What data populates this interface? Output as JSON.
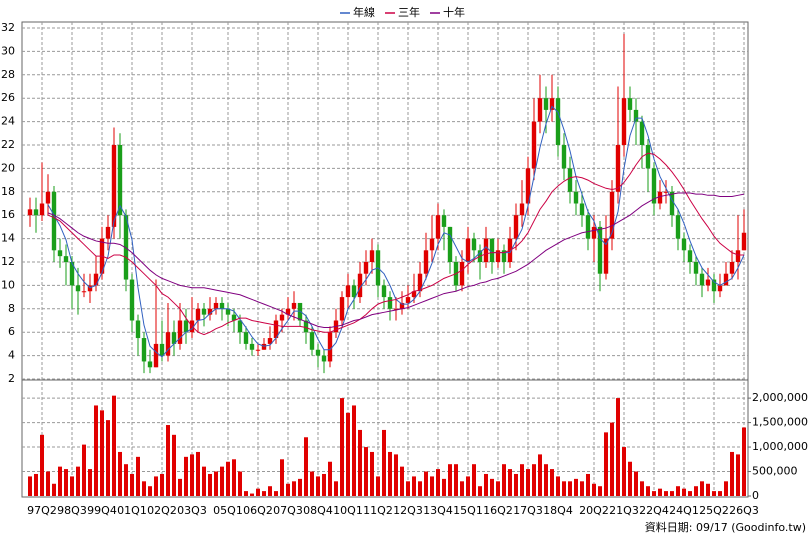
{
  "chart_data": {
    "type": "candlestick",
    "legend_position": "top",
    "grid": true,
    "up_color": "#e00000",
    "down_color": "#1a9e1a",
    "categories": [
      "",
      "",
      "97Q2",
      "",
      "",
      "",
      "",
      "98Q3",
      "",
      "",
      "",
      "",
      "99Q4",
      "",
      "",
      "",
      "",
      "01Q1",
      "",
      "",
      "",
      "",
      "02Q2",
      "",
      "",
      "",
      "",
      "03Q3",
      "",
      "",
      "",
      "",
      "",
      "05Q1",
      "",
      "",
      "",
      "",
      "06Q2",
      "",
      "",
      "",
      "",
      "07Q3",
      "",
      "",
      "",
      "",
      "08Q4",
      "",
      "",
      "",
      "",
      "10Q1",
      "",
      "",
      "",
      "",
      "11Q2",
      "",
      "",
      "",
      "",
      "12Q3",
      "",
      "",
      "",
      "",
      "13Q4",
      "",
      "",
      "",
      "",
      "15Q1",
      "",
      "",
      "",
      "",
      "16Q2",
      "",
      "",
      "",
      "",
      "17Q3",
      "",
      "",
      "",
      "",
      "18Q4",
      "",
      "",
      "",
      "",
      "",
      "20Q2",
      "",
      "",
      "",
      "",
      "21Q3",
      "",
      "",
      "",
      "",
      "22Q4",
      "",
      "",
      "",
      "",
      "24Q1",
      "",
      "",
      "",
      "",
      "25Q2",
      "",
      "",
      "",
      "",
      "26Q3"
    ],
    "open": [
      16,
      16.5,
      16,
      17,
      18,
      13,
      12.5,
      12,
      10,
      9.5,
      9.5,
      10,
      11,
      14,
      15,
      22,
      16,
      10.5,
      7,
      5.5,
      3.5,
      3,
      5,
      4,
      6,
      5,
      7,
      6,
      7,
      8,
      7.5,
      8,
      8.5,
      8,
      7.5,
      7,
      6,
      5,
      4.5,
      4.5,
      5,
      5.5,
      7,
      7.5,
      8,
      8.5,
      7,
      6,
      4.5,
      4,
      3.5,
      6,
      7,
      9,
      10,
      9,
      11,
      12,
      13,
      10,
      9,
      8,
      8,
      8.5,
      9,
      9.5,
      11,
      13,
      14,
      16,
      15,
      12,
      10,
      12,
      14,
      13,
      12,
      14,
      12,
      13,
      12,
      14,
      16,
      17,
      20,
      24,
      26,
      25,
      26,
      22,
      20,
      18,
      17,
      16,
      14,
      15,
      11,
      14,
      18,
      22,
      26,
      25,
      24,
      22,
      20,
      17,
      18,
      18,
      16,
      14,
      13,
      12,
      11,
      10,
      10.5,
      9.5,
      10,
      11,
      12,
      13
    ],
    "high": [
      17.5,
      17.5,
      20.5,
      19.5,
      18.5,
      14,
      13.5,
      12.5,
      11.5,
      11,
      11,
      12.5,
      15,
      16,
      23.5,
      23,
      16.5,
      11,
      7.5,
      6,
      4.5,
      10.5,
      7,
      8.5,
      7,
      8.5,
      8,
      9,
      8.5,
      8.5,
      9,
      9,
      9,
      8.5,
      8,
      7.5,
      6.5,
      5.5,
      5,
      5.5,
      6.5,
      7.5,
      8,
      9,
      9.5,
      8.5,
      7.5,
      6.5,
      5,
      4.5,
      6.5,
      8,
      9.5,
      11,
      10.5,
      12,
      13,
      14,
      13.5,
      10.5,
      9.5,
      9,
      9.5,
      10,
      11,
      12,
      14.5,
      16,
      17,
      16.5,
      15,
      12.5,
      13,
      15,
      14.5,
      13.5,
      15,
      14,
      14,
      13.5,
      15,
      17,
      19,
      21,
      26,
      28,
      27,
      28,
      27,
      23,
      21,
      19,
      18,
      16.5,
      16,
      15.5,
      16,
      19,
      27,
      31.5,
      27,
      26,
      24.5,
      22.5,
      20.5,
      19,
      19,
      18.5,
      16.5,
      14.5,
      13.5,
      12.5,
      11.5,
      11.5,
      11,
      11,
      12,
      13,
      16,
      16.5
    ],
    "low": [
      15,
      14.5,
      15.5,
      16,
      12,
      11.5,
      10,
      8,
      7.5,
      9,
      8.5,
      9.5,
      10.5,
      13,
      14,
      14,
      9.5,
      6,
      4,
      2.5,
      2.5,
      3,
      3.5,
      3.5,
      4,
      4.5,
      5,
      5.5,
      6,
      6.5,
      7,
      7.5,
      7,
      6.5,
      6,
      5,
      4.5,
      4,
      4,
      4.5,
      4.5,
      5,
      6,
      7,
      7,
      6.5,
      5,
      4,
      3,
      2.5,
      3,
      5.5,
      6.5,
      8,
      8,
      8.5,
      10,
      11,
      9,
      8,
      7,
      7,
      7.5,
      8,
      8.5,
      9,
      10.5,
      12,
      13,
      13,
      11,
      9.5,
      9.5,
      11,
      12,
      10.5,
      11.5,
      11,
      11.5,
      11,
      11.5,
      13,
      15,
      16,
      19,
      23,
      23,
      24,
      21,
      19,
      17,
      16,
      15,
      13,
      12,
      9.5,
      10.5,
      13,
      17,
      21,
      24,
      22,
      20,
      18,
      16,
      16.5,
      17,
      15,
      13,
      12,
      11,
      10,
      9,
      9.5,
      8.5,
      9,
      10,
      10.5,
      10.5,
      13
    ],
    "close": [
      16.5,
      16,
      17,
      18,
      13,
      12.5,
      12,
      10,
      9.5,
      9.5,
      10,
      11,
      14,
      15,
      22,
      16,
      10.5,
      7,
      5.5,
      3.5,
      3,
      5,
      4,
      6,
      5,
      7,
      6,
      7,
      8,
      7.5,
      8,
      8.5,
      8,
      7.5,
      7,
      6,
      5,
      4.5,
      4.5,
      5,
      5.5,
      7,
      7.5,
      8,
      8.5,
      7,
      6,
      4.5,
      4,
      3.5,
      6,
      7,
      9,
      10,
      9,
      11,
      12,
      13,
      10,
      9,
      8,
      8,
      8.5,
      9,
      9.5,
      11,
      13,
      14,
      16,
      15,
      12,
      10,
      12,
      14,
      13,
      12,
      14,
      12,
      13,
      12,
      14,
      16,
      17,
      20,
      24,
      26,
      25,
      26,
      22,
      20,
      18,
      17,
      16,
      14,
      15,
      11,
      14,
      18,
      22,
      26,
      25,
      24,
      22,
      20,
      17,
      18,
      18,
      16,
      14,
      13,
      12,
      11,
      10,
      10.5,
      9.5,
      10,
      11,
      12,
      13,
      14.5
    ],
    "ylim": [
      2,
      32
    ],
    "yticks": [
      2,
      4,
      6,
      8,
      10,
      12,
      14,
      16,
      18,
      20,
      22,
      24,
      26,
      28,
      30,
      32
    ],
    "series": [
      {
        "name": "年線",
        "color": "#3060c0",
        "values": [
          null,
          null,
          null,
          16.9,
          16,
          15.1,
          13.9,
          11.9,
          11,
          10.3,
          9.8,
          10,
          11.1,
          12.5,
          15.5,
          16.8,
          15.9,
          13.9,
          9.8,
          6.6,
          4.8,
          4.3,
          3.9,
          4.5,
          5,
          5.5,
          6,
          6.3,
          7,
          7.1,
          7.6,
          8,
          8,
          8,
          7.8,
          7.1,
          6.4,
          5.6,
          5,
          4.8,
          4.9,
          5.5,
          6.3,
          7,
          7.8,
          7.8,
          7.4,
          6.5,
          5.4,
          4.5,
          4.5,
          5.1,
          6.4,
          8,
          8.8,
          9.8,
          10.5,
          11.3,
          11.5,
          11,
          10,
          8.8,
          8.4,
          8.4,
          8.8,
          9.5,
          10.6,
          11.9,
          13.5,
          14.5,
          14.3,
          13.3,
          12.3,
          12,
          12.3,
          12.8,
          13.3,
          12.8,
          12.8,
          12.8,
          12.8,
          13.8,
          14.8,
          16.8,
          19.3,
          21.8,
          23.8,
          25.3,
          24.8,
          23.3,
          21.5,
          19.3,
          17.8,
          16.3,
          15.5,
          14,
          13.5,
          14.5,
          16.3,
          20,
          22.8,
          24.3,
          24.3,
          22.8,
          20.8,
          19.3,
          18.3,
          17.3,
          16.5,
          15.3,
          13.8,
          12.5,
          11.5,
          10.9,
          10.3,
          10,
          10.3,
          10.6,
          11.5,
          12.6
        ]
      },
      {
        "name": "三年",
        "color": "#cc0044",
        "values": [
          null,
          null,
          null,
          16,
          15.8,
          15.5,
          15,
          14.5,
          14,
          13.5,
          13,
          12.5,
          12.5,
          12.3,
          12.6,
          12.6,
          12.4,
          12,
          11.5,
          11,
          10.5,
          10,
          9.3,
          9,
          8.5,
          8,
          7.2,
          6.5,
          6,
          5.8,
          6,
          6.3,
          6.5,
          6.8,
          7,
          7.2,
          7.2,
          7,
          6.9,
          6.8,
          6.7,
          6.6,
          6.5,
          6.5,
          6.5,
          6.5,
          6.4,
          6.2,
          6.1,
          6,
          6,
          6.2,
          6.4,
          6.6,
          6.8,
          7.1,
          7.5,
          8,
          8.4,
          8.6,
          8.7,
          8.8,
          9,
          9.2,
          9.5,
          9.6,
          9.8,
          10,
          10.3,
          10.6,
          10.8,
          11,
          11.3,
          11.8,
          12.2,
          12.5,
          12.7,
          12.8,
          12.8,
          12.8,
          13,
          13.3,
          13.8,
          14.5,
          15.5,
          16.5,
          17.2,
          18,
          18.5,
          18.9,
          19.2,
          19.3,
          19.2,
          19,
          18.7,
          18.5,
          18.3,
          18.2,
          18.3,
          18.8,
          19.5,
          20.3,
          21,
          21.3,
          21.2,
          20.8,
          20.3,
          19.7,
          19,
          18.2,
          17.3,
          16.5,
          15.7,
          15,
          14.2,
          13.6,
          13.2,
          12.8,
          12.6,
          12.6
        ]
      },
      {
        "name": "十年",
        "color": "#800080",
        "values": [
          null,
          null,
          null,
          16.2,
          16,
          15.7,
          15.3,
          14.9,
          14.5,
          14.2,
          14,
          13.8,
          13.7,
          13.6,
          13.6,
          13.5,
          13.2,
          12.8,
          12.3,
          11.8,
          11.3,
          10.9,
          10.6,
          10.4,
          10.2,
          10,
          9.9,
          9.8,
          9.8,
          9.8,
          9.7,
          9.6,
          9.5,
          9.4,
          9.3,
          9.2,
          9,
          8.8,
          8.6,
          8.4,
          8.2,
          8,
          7.8,
          7.5,
          7.3,
          7.1,
          6.9,
          6.7,
          6.5,
          6.4,
          6.4,
          6.5,
          6.6,
          6.8,
          7,
          7.1,
          7.3,
          7.5,
          7.6,
          7.7,
          7.8,
          7.9,
          8,
          8.1,
          8.3,
          8.5,
          8.7,
          8.9,
          9.1,
          9.3,
          9.4,
          9.5,
          9.7,
          9.9,
          10,
          10.2,
          10.3,
          10.5,
          10.6,
          10.8,
          11,
          11.2,
          11.5,
          11.8,
          12.2,
          12.6,
          13,
          13.3,
          13.6,
          13.9,
          14.1,
          14.3,
          14.5,
          14.6,
          14.7,
          14.8,
          14.9,
          15.1,
          15.4,
          15.7,
          16,
          16.4,
          16.8,
          17.1,
          17.4,
          17.6,
          17.7,
          17.8,
          17.9,
          17.9,
          17.9,
          17.8,
          17.8,
          17.7,
          17.7,
          17.6,
          17.6,
          17.6,
          17.7,
          17.8
        ]
      }
    ],
    "volume": {
      "color": "#e00000",
      "values": [
        400000,
        450000,
        1250000,
        500000,
        250000,
        600000,
        550000,
        400000,
        600000,
        1050000,
        550000,
        1850000,
        1750000,
        1550000,
        2050000,
        900000,
        650000,
        450000,
        800000,
        300000,
        200000,
        400000,
        450000,
        1450000,
        1250000,
        350000,
        800000,
        850000,
        900000,
        600000,
        450000,
        500000,
        600000,
        700000,
        750000,
        500000,
        100000,
        50000,
        150000,
        100000,
        200000,
        100000,
        750000,
        250000,
        300000,
        350000,
        1200000,
        500000,
        400000,
        450000,
        700000,
        300000,
        2000000,
        1700000,
        1850000,
        1350000,
        1000000,
        900000,
        400000,
        1350000,
        900000,
        850000,
        600000,
        300000,
        400000,
        300000,
        500000,
        400000,
        550000,
        350000,
        650000,
        650000,
        300000,
        400000,
        650000,
        200000,
        450000,
        350000,
        300000,
        650000,
        550000,
        450000,
        650000,
        550000,
        650000,
        850000,
        650000,
        550000,
        400000,
        300000,
        300000,
        350000,
        300000,
        450000,
        250000,
        200000,
        1300000,
        1500000,
        2000000,
        1000000,
        700000,
        500000,
        300000,
        200000,
        100000,
        150000,
        100000,
        100000,
        200000,
        150000,
        100000,
        200000,
        300000,
        250000,
        100000,
        100000,
        300000,
        900000,
        850000,
        1400000
      ]
    },
    "y2lim": [
      0,
      2370000
    ],
    "y2ticks": [
      0,
      {
        "value": 500000,
        "label": "500,000"
      },
      {
        "value": 1000000,
        "label": "1,000,000"
      },
      {
        "value": 1500000,
        "label": "1,500,000"
      },
      {
        "value": 2000000,
        "label": "2,000,000"
      }
    ],
    "footer": "資料日期: 09/17  (Goodinfo.tw)"
  }
}
